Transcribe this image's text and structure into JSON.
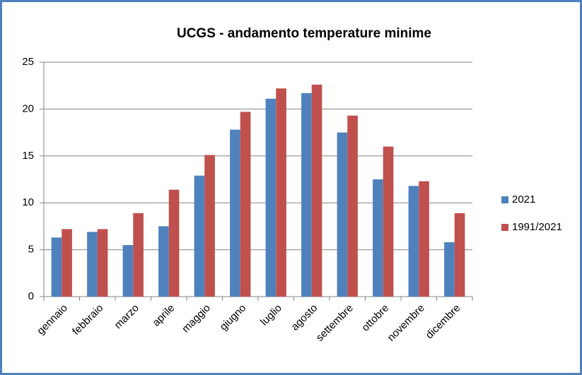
{
  "chart_data": {
    "type": "bar",
    "title": "UCGS - andamento temperature minime",
    "categories": [
      "gennaio",
      "febbraio",
      "marzo",
      "aprile",
      "maggio",
      "giugno",
      "luglio",
      "agosto",
      "settembre",
      "ottobre",
      "novembre",
      "dicembre"
    ],
    "series": [
      {
        "name": "2021",
        "color": "#4f81bd",
        "values": [
          6.3,
          6.9,
          5.5,
          7.5,
          12.9,
          17.8,
          21.1,
          21.7,
          17.5,
          12.5,
          11.8,
          5.8
        ]
      },
      {
        "name": "1991/2021",
        "color": "#c0504d",
        "values": [
          7.2,
          7.2,
          8.9,
          11.4,
          15.1,
          19.7,
          22.2,
          22.6,
          19.3,
          16.0,
          12.3,
          8.9
        ]
      }
    ],
    "ylim": [
      0,
      25
    ],
    "yticks": [
      0,
      5,
      10,
      15,
      20,
      25
    ],
    "grid": true,
    "legend": "right"
  }
}
